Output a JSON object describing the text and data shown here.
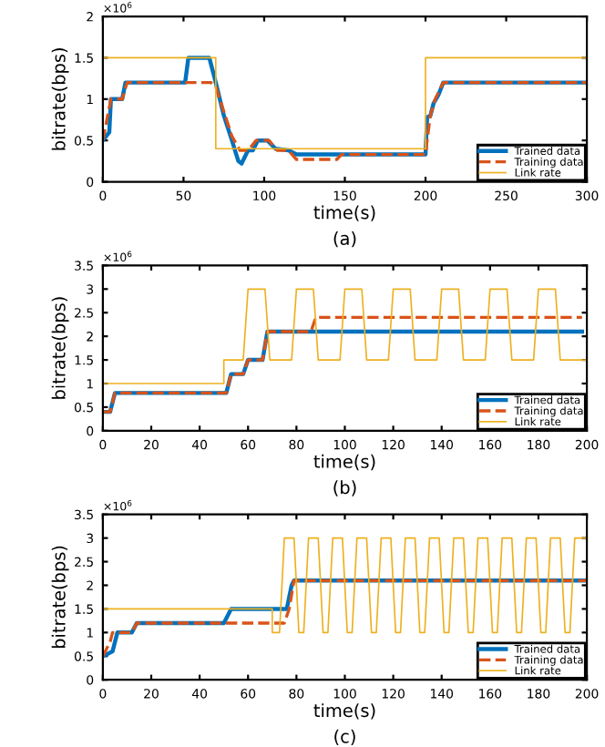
{
  "chart_data": [
    {
      "type": "line",
      "title": "(a)",
      "xlabel": "time(s)",
      "ylabel": "bitrate(bps)",
      "annotations": [
        "×10$^{6}$"
      ],
      "xlim": [
        0,
        300
      ],
      "ylim": [
        0,
        2
      ],
      "xticks": [
        0,
        50,
        100,
        150,
        200,
        250,
        300
      ],
      "yticks": [
        0,
        0.5,
        1,
        1.5,
        2
      ],
      "grid": false,
      "legend": "bottom right",
      "series": [
        {
          "name": "Trained data",
          "color": "#0072bd",
          "line_style": "solid",
          "x": [
            0,
            2,
            4,
            5,
            12,
            14,
            51,
            53,
            66,
            70,
            75,
            80,
            84,
            86,
            88,
            90,
            93,
            96,
            102,
            107,
            115,
            120,
            200,
            201,
            203,
            205,
            208,
            211,
            300
          ],
          "values": [
            0.5,
            0.55,
            0.6,
            1.0,
            1.0,
            1.2,
            1.2,
            1.5,
            1.5,
            1.2,
            0.8,
            0.5,
            0.25,
            0.22,
            0.3,
            0.38,
            0.38,
            0.5,
            0.5,
            0.4,
            0.38,
            0.33,
            0.33,
            0.78,
            0.8,
            0.95,
            1.05,
            1.2,
            1.2
          ]
        },
        {
          "name": "Training data",
          "color": "#d95319",
          "line_style": "dashed",
          "x": [
            0,
            3,
            5,
            12,
            15,
            67,
            70,
            75,
            80,
            85,
            90,
            95,
            103,
            108,
            115,
            120,
            145,
            148,
            200,
            201,
            203,
            206,
            211,
            300
          ],
          "values": [
            0.5,
            0.8,
            1.0,
            1.0,
            1.2,
            1.2,
            1.15,
            0.85,
            0.55,
            0.38,
            0.38,
            0.5,
            0.5,
            0.38,
            0.38,
            0.27,
            0.27,
            0.33,
            0.33,
            0.5,
            0.8,
            1.0,
            1.2,
            1.2
          ]
        },
        {
          "name": "Link rate",
          "color": "#edb120",
          "line_style": "solid",
          "x": [
            0,
            70,
            70,
            200,
            200,
            300
          ],
          "values": [
            1.5,
            1.5,
            0.4,
            0.4,
            1.5,
            1.5
          ]
        }
      ]
    },
    {
      "type": "line",
      "title": "(b)",
      "xlabel": "time(s)",
      "ylabel": "bitrate(bps)",
      "annotations": [
        "×10$^{6}$"
      ],
      "xlim": [
        0,
        200
      ],
      "ylim": [
        0,
        3.5
      ],
      "xticks": [
        0,
        20,
        40,
        60,
        80,
        100,
        120,
        140,
        160,
        180,
        200
      ],
      "yticks": [
        0,
        0.5,
        1,
        1.5,
        2,
        2.5,
        3,
        3.5
      ],
      "grid": false,
      "legend": "bottom right",
      "series": [
        {
          "name": "Trained data",
          "color": "#0072bd",
          "line_style": "solid",
          "x": [
            0,
            3,
            5,
            51,
            53,
            58,
            60,
            66,
            68,
            198
          ],
          "values": [
            0.4,
            0.4,
            0.8,
            0.8,
            1.2,
            1.2,
            1.5,
            1.5,
            2.1,
            2.1
          ]
        },
        {
          "name": "Training data",
          "color": "#d95319",
          "line_style": "dashed",
          "x": [
            0,
            3,
            5,
            51,
            53,
            58,
            60,
            66,
            68,
            86,
            88,
            198
          ],
          "values": [
            0.4,
            0.4,
            0.8,
            0.8,
            1.2,
            1.2,
            1.5,
            1.5,
            2.1,
            2.1,
            2.4,
            2.4
          ]
        },
        {
          "name": "Link rate",
          "color": "#edb120",
          "line_style": "solid",
          "x": [
            0,
            50,
            50,
            58,
            60,
            67,
            69,
            78,
            80,
            87,
            89,
            98,
            100,
            107,
            109,
            118,
            120,
            127,
            129,
            138,
            140,
            147,
            149,
            158,
            160,
            167,
            169,
            178,
            180,
            187,
            189,
            200
          ],
          "values": [
            1,
            1,
            1.5,
            1.5,
            3,
            3,
            1.5,
            1.5,
            3,
            3,
            1.5,
            1.5,
            3,
            3,
            1.5,
            1.5,
            3,
            3,
            1.5,
            1.5,
            3,
            3,
            1.5,
            1.5,
            3,
            3,
            1.5,
            1.5,
            3,
            3,
            1.5,
            1.5
          ]
        }
      ]
    },
    {
      "type": "line",
      "title": "(c)",
      "xlabel": "time(s)",
      "ylabel": "bitrate(bps)",
      "annotations": [
        "×10$^{6}$"
      ],
      "xlim": [
        0,
        200
      ],
      "ylim": [
        0,
        3.5
      ],
      "xticks": [
        0,
        20,
        40,
        60,
        80,
        100,
        120,
        140,
        160,
        180,
        200
      ],
      "yticks": [
        0,
        0.5,
        1,
        1.5,
        2,
        2.5,
        3,
        3.5
      ],
      "grid": false,
      "legend": "bottom right",
      "series": [
        {
          "name": "Trained data",
          "color": "#0072bd",
          "line_style": "solid",
          "x": [
            0,
            2,
            4,
            6,
            12,
            14,
            50,
            53,
            76,
            78,
            79,
            200
          ],
          "values": [
            0.5,
            0.55,
            0.6,
            1.0,
            1.0,
            1.2,
            1.2,
            1.5,
            1.5,
            2.0,
            2.1,
            2.1
          ]
        },
        {
          "name": "Training data",
          "color": "#d95319",
          "line_style": "dashed",
          "x": [
            0,
            3,
            4,
            12,
            14,
            75,
            77,
            79,
            200
          ],
          "values": [
            0.5,
            0.8,
            1.0,
            1.0,
            1.2,
            1.2,
            1.5,
            2.1,
            2.1
          ]
        },
        {
          "name": "Link rate",
          "color": "#edb120",
          "line_style": "solid",
          "x": [
            0,
            70,
            70,
            73,
            75,
            79,
            81,
            83,
            85,
            89,
            91,
            93,
            95,
            99,
            101,
            103,
            105,
            109,
            111,
            113,
            115,
            119,
            121,
            123,
            125,
            129,
            131,
            133,
            135,
            139,
            141,
            143,
            145,
            149,
            151,
            153,
            155,
            159,
            161,
            163,
            165,
            169,
            171,
            173,
            175,
            179,
            181,
            183,
            185,
            189,
            191,
            193,
            195,
            200
          ],
          "values": [
            1.5,
            1.5,
            1,
            1,
            3,
            3,
            1,
            1,
            3,
            3,
            1,
            1,
            3,
            3,
            1,
            1,
            3,
            3,
            1,
            1,
            3,
            3,
            1,
            1,
            3,
            3,
            1,
            1,
            3,
            3,
            1,
            1,
            3,
            3,
            1,
            1,
            3,
            3,
            1,
            1,
            3,
            3,
            1,
            1,
            3,
            3,
            1,
            1,
            3,
            3,
            1,
            1,
            3,
            3
          ]
        }
      ]
    }
  ]
}
